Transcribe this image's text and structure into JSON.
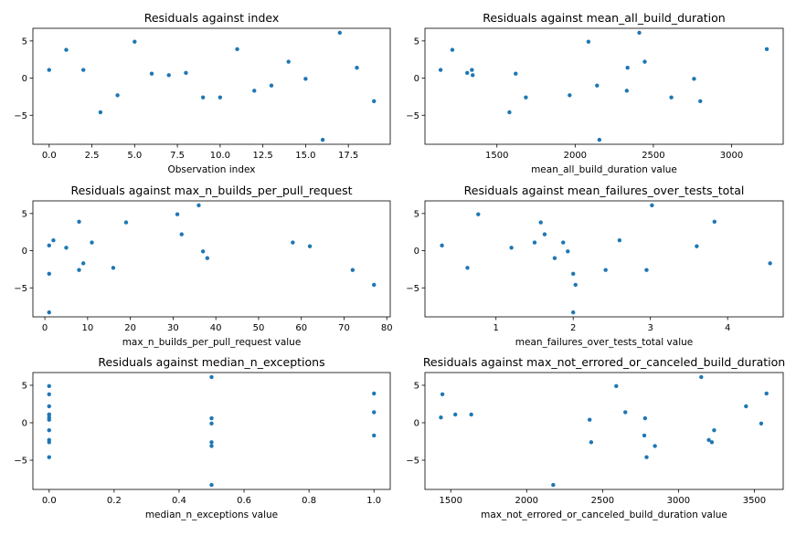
{
  "colors": {
    "marker": "#1f77b4",
    "axis": "#000000",
    "background": "#ffffff"
  },
  "chart_data": [
    {
      "type": "scatter",
      "title": "Residuals against index",
      "xlabel": "Observation index",
      "ylabel": "",
      "xlim": [
        -0.95,
        19.95
      ],
      "ylim": [
        -8.9,
        6.7
      ],
      "xticks": [
        0,
        2.5,
        5,
        7.5,
        10,
        12.5,
        15,
        17.5
      ],
      "xtick_labels": [
        "0.0",
        "2.5",
        "5.0",
        "7.5",
        "10.0",
        "12.5",
        "15.0",
        "17.5"
      ],
      "yticks": [
        -5,
        0,
        5
      ],
      "ytick_labels": [
        "−5",
        "0",
        "5"
      ],
      "grid": false,
      "x": [
        0,
        1,
        2,
        3,
        4,
        5,
        6,
        7,
        8,
        9,
        10,
        11,
        12,
        13,
        14,
        15,
        16,
        17,
        18,
        19
      ],
      "y": [
        1.1,
        3.8,
        1.1,
        -4.6,
        -2.3,
        4.9,
        0.6,
        0.4,
        0.7,
        -2.6,
        -2.6,
        3.9,
        -1.7,
        -1.0,
        2.2,
        -0.1,
        -8.3,
        6.1,
        1.4,
        -3.1
      ]
    },
    {
      "type": "scatter",
      "title": "Residuals against mean_all_build_duration",
      "xlabel": "mean_all_build_duration value",
      "ylabel": "",
      "xlim": [
        1040,
        3330
      ],
      "ylim": [
        -8.9,
        6.7
      ],
      "xticks": [
        1500,
        2000,
        2500,
        3000
      ],
      "xtick_labels": [
        "1500",
        "2000",
        "2500",
        "3000"
      ],
      "yticks": [
        -5,
        0,
        5
      ],
      "ytick_labels": [
        "−5",
        "0",
        "5"
      ],
      "grid": false,
      "x": [
        1140,
        1215,
        1310,
        1340,
        1345,
        1580,
        1620,
        1685,
        1965,
        2085,
        2140,
        2155,
        2330,
        2335,
        2410,
        2445,
        2615,
        2760,
        2800,
        3225
      ],
      "y": [
        1.1,
        3.8,
        0.7,
        1.1,
        0.4,
        -4.6,
        0.6,
        -2.6,
        -2.3,
        4.9,
        -1.0,
        -8.3,
        -1.7,
        1.4,
        6.1,
        2.2,
        -2.6,
        -0.1,
        -3.1,
        3.9
      ]
    },
    {
      "type": "scatter",
      "title": "Residuals against max_n_builds_per_pull_request",
      "xlabel": "max_n_builds_per_pull_request value",
      "ylabel": "",
      "xlim": [
        -2.8,
        80.8
      ],
      "ylim": [
        -8.9,
        6.7
      ],
      "xticks": [
        0,
        10,
        20,
        30,
        40,
        50,
        60,
        70,
        80
      ],
      "xtick_labels": [
        "0",
        "10",
        "20",
        "30",
        "40",
        "50",
        "60",
        "70",
        "80"
      ],
      "yticks": [
        -5,
        0,
        5
      ],
      "ytick_labels": [
        "−5",
        "0",
        "5"
      ],
      "grid": false,
      "x": [
        1,
        1,
        1,
        2,
        5,
        8,
        8,
        9,
        11,
        16,
        19,
        31,
        32,
        36,
        37,
        38,
        58,
        62,
        72,
        77
      ],
      "y": [
        0.7,
        -3.1,
        -8.3,
        1.4,
        0.4,
        3.9,
        -2.6,
        -1.7,
        1.1,
        -2.3,
        3.8,
        4.9,
        2.2,
        6.1,
        -0.1,
        -1.0,
        1.1,
        0.6,
        -2.6,
        -4.6
      ]
    },
    {
      "type": "scatter",
      "title": "Residuals against mean_failures_over_tests_total",
      "xlabel": "mean_failures_over_tests_total value",
      "ylabel": "",
      "xlim": [
        0.08,
        4.72
      ],
      "ylim": [
        -8.9,
        6.7
      ],
      "xticks": [
        1,
        2,
        3,
        4
      ],
      "xtick_labels": [
        "1",
        "2",
        "3",
        "4"
      ],
      "yticks": [
        -5,
        0,
        5
      ],
      "ytick_labels": [
        "−5",
        "0",
        "5"
      ],
      "grid": false,
      "x": [
        0.3,
        0.63,
        0.77,
        1.2,
        1.5,
        1.58,
        1.63,
        1.76,
        1.87,
        1.93,
        2.0,
        2.0,
        2.03,
        2.42,
        2.6,
        2.95,
        3.02,
        3.6,
        3.83,
        4.55
      ],
      "y": [
        0.7,
        -2.3,
        4.9,
        0.4,
        1.1,
        3.8,
        2.2,
        -1.0,
        1.1,
        -0.1,
        -3.1,
        -8.3,
        -4.6,
        -2.6,
        1.4,
        -2.6,
        6.1,
        0.6,
        3.9,
        -1.7
      ]
    },
    {
      "type": "scatter",
      "title": "Residuals against median_n_exceptions",
      "xlabel": "median_n_exceptions value",
      "ylabel": "",
      "xlim": [
        -0.05,
        1.05
      ],
      "ylim": [
        -8.9,
        6.7
      ],
      "xticks": [
        0,
        0.2,
        0.4,
        0.6,
        0.8,
        1.0
      ],
      "xtick_labels": [
        "0.0",
        "0.2",
        "0.4",
        "0.6",
        "0.8",
        "1.0"
      ],
      "yticks": [
        -5,
        0,
        5
      ],
      "ytick_labels": [
        "−5",
        "0",
        "5"
      ],
      "grid": false,
      "x": [
        0,
        0,
        0,
        0,
        0,
        0,
        0,
        0,
        0,
        0,
        0,
        0.5,
        0.5,
        0.5,
        0.5,
        0.5,
        0.5,
        1,
        1,
        1
      ],
      "y": [
        4.9,
        3.8,
        2.2,
        1.1,
        0.7,
        0.4,
        -1.0,
        -2.3,
        -2.6,
        -4.6,
        1.1,
        6.1,
        0.6,
        -0.1,
        -2.6,
        -3.1,
        -8.3,
        3.9,
        1.4,
        -1.7
      ]
    },
    {
      "type": "scatter",
      "title": "Residuals against max_not_errored_or_canceled_build_duration",
      "xlabel": "max_not_errored_or_canceled_build_duration value",
      "ylabel": "",
      "xlim": [
        1330,
        3690
      ],
      "ylim": [
        -8.9,
        6.7
      ],
      "xticks": [
        1500,
        2000,
        2500,
        3000,
        3500
      ],
      "xtick_labels": [
        "1500",
        "2000",
        "2500",
        "3000",
        "3500"
      ],
      "yticks": [
        -5,
        0,
        5
      ],
      "ytick_labels": [
        "−5",
        "0",
        "5"
      ],
      "grid": false,
      "x": [
        1435,
        1445,
        1530,
        1635,
        2175,
        2415,
        2425,
        2590,
        2650,
        2775,
        2780,
        2790,
        2845,
        3150,
        3200,
        3220,
        3235,
        3445,
        3545,
        3580
      ],
      "y": [
        0.7,
        3.8,
        1.1,
        1.1,
        -8.3,
        0.4,
        -2.6,
        4.9,
        1.4,
        -1.7,
        0.6,
        -4.6,
        -3.1,
        6.1,
        -2.3,
        -2.6,
        -1.0,
        2.2,
        -0.1,
        3.9
      ]
    }
  ]
}
